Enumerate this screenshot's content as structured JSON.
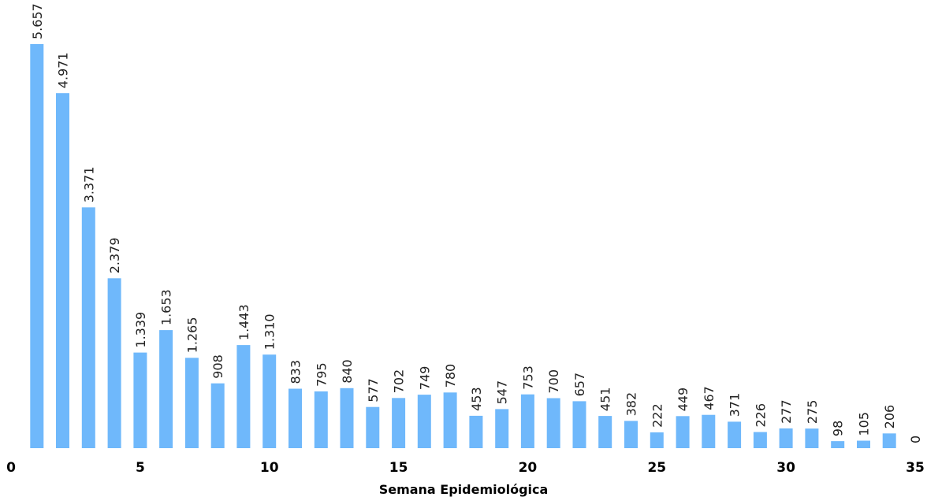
{
  "chart_data": {
    "type": "bar",
    "xlabel": "Semana Epidemiológica",
    "ylabel": "",
    "xlim": [
      0,
      35
    ],
    "x_ticks": [
      0,
      5,
      10,
      15,
      20,
      25,
      30,
      35
    ],
    "x_tick_labels": [
      "0",
      "5",
      "10",
      "15",
      "20",
      "25",
      "30",
      "35"
    ],
    "ylim": [
      0,
      5657
    ],
    "grid": false,
    "bar_color": "#6fb8fb",
    "x": [
      1,
      2,
      3,
      4,
      5,
      6,
      7,
      8,
      9,
      10,
      11,
      12,
      13,
      14,
      15,
      16,
      17,
      18,
      19,
      20,
      21,
      22,
      23,
      24,
      25,
      26,
      27,
      28,
      29,
      30,
      31,
      32,
      33,
      34,
      35
    ],
    "values": [
      5657,
      4971,
      3371,
      2379,
      1339,
      1653,
      1265,
      908,
      1443,
      1310,
      833,
      795,
      840,
      577,
      702,
      749,
      780,
      453,
      547,
      753,
      700,
      657,
      451,
      382,
      222,
      449,
      467,
      371,
      226,
      277,
      275,
      98,
      105,
      206,
      0
    ],
    "data_labels": [
      "5.657",
      "4.971",
      "3.371",
      "2.379",
      "1.339",
      "1.653",
      "1.265",
      "908",
      "1.443",
      "1.310",
      "833",
      "795",
      "840",
      "577",
      "702",
      "749",
      "780",
      "453",
      "547",
      "753",
      "700",
      "657",
      "451",
      "382",
      "222",
      "449",
      "467",
      "371",
      "226",
      "277",
      "275",
      "98",
      "105",
      "206",
      "0"
    ]
  }
}
